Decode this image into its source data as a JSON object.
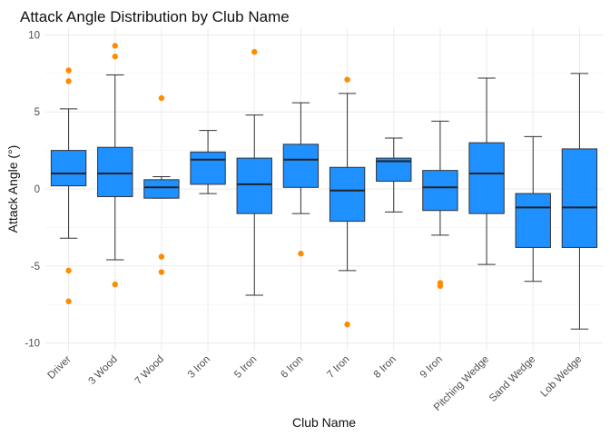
{
  "chart_data": {
    "type": "boxplot",
    "title": "Attack Angle Distribution by Club Name",
    "xlabel": "Club Name",
    "ylabel": "Attack Angle (°)",
    "ylim": [
      -10.5,
      10.5
    ],
    "yticks": [
      -10,
      -5,
      0,
      5,
      10
    ],
    "grid": true,
    "box_color": "#1e90ff",
    "outlier_color": "#ff8c00",
    "categories": [
      "Driver",
      "3 Wood",
      "7 Wood",
      "3 Iron",
      "5 Iron",
      "6 Iron",
      "7 Iron",
      "8 Iron",
      "9 Iron",
      "Pitching Wedge",
      "Sand Wedge",
      "Lob Wedge"
    ],
    "boxes": [
      {
        "min": -3.2,
        "q1": 0.2,
        "median": 1.0,
        "q3": 2.5,
        "max": 5.2,
        "outliers": [
          7.7,
          7.0,
          -5.3,
          -7.3
        ]
      },
      {
        "min": -4.6,
        "q1": -0.5,
        "median": 1.0,
        "q3": 2.7,
        "max": 7.4,
        "outliers": [
          9.3,
          8.6,
          -6.2
        ]
      },
      {
        "min": -0.6,
        "q1": -0.6,
        "median": 0.1,
        "q3": 0.6,
        "max": 0.8,
        "outliers": [
          5.9,
          -4.4,
          -5.4
        ]
      },
      {
        "min": -0.3,
        "q1": 0.3,
        "median": 1.9,
        "q3": 2.4,
        "max": 3.8,
        "outliers": []
      },
      {
        "min": -6.9,
        "q1": -1.6,
        "median": 0.3,
        "q3": 2.0,
        "max": 4.8,
        "outliers": [
          8.9
        ]
      },
      {
        "min": -1.6,
        "q1": 0.1,
        "median": 1.9,
        "q3": 2.9,
        "max": 5.6,
        "outliers": [
          -4.2
        ]
      },
      {
        "min": -5.3,
        "q1": -2.1,
        "median": -0.1,
        "q3": 1.4,
        "max": 6.2,
        "outliers": [
          7.1,
          -8.8
        ]
      },
      {
        "min": -1.5,
        "q1": 0.5,
        "median": 1.8,
        "q3": 2.0,
        "max": 3.3,
        "outliers": []
      },
      {
        "min": -3.0,
        "q1": -1.4,
        "median": 0.1,
        "q3": 1.2,
        "max": 4.4,
        "outliers": [
          -6.1,
          -6.3
        ]
      },
      {
        "min": -4.9,
        "q1": -1.6,
        "median": 1.0,
        "q3": 3.0,
        "max": 7.2,
        "outliers": []
      },
      {
        "min": -6.0,
        "q1": -3.8,
        "median": -1.2,
        "q3": -0.3,
        "max": 3.4,
        "outliers": []
      },
      {
        "min": -9.1,
        "q1": -3.8,
        "median": -1.2,
        "q3": 2.6,
        "max": 7.5,
        "outliers": []
      }
    ]
  }
}
